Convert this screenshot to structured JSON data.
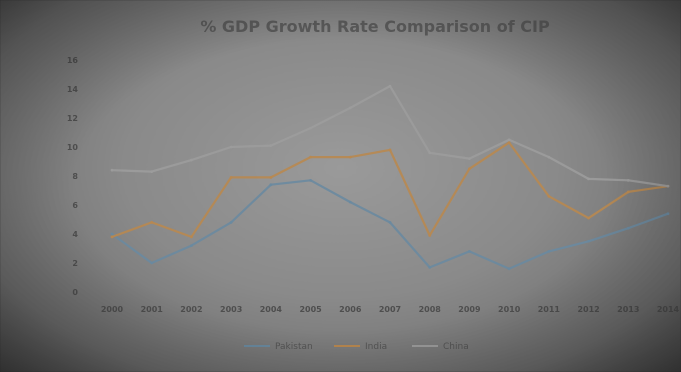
{
  "chart_data": {
    "type": "line",
    "title": "% GDP Growth Rate Comparison of CIP",
    "xlabel": "",
    "ylabel": "",
    "categories": [
      "2000",
      "2001",
      "2002",
      "2003",
      "2004",
      "2005",
      "2006",
      "2007",
      "2008",
      "2009",
      "2010",
      "2011",
      "2012",
      "2013",
      "2014"
    ],
    "yticks": [
      "0",
      "2",
      "4",
      "6",
      "8",
      "10",
      "12",
      "14",
      "16"
    ],
    "ylim": [
      0,
      16
    ],
    "grid": false,
    "legend_position": "bottom",
    "series": [
      {
        "name": "Pakistan",
        "color": "#6a8aa0",
        "values": [
          4.0,
          2.0,
          3.2,
          4.8,
          7.4,
          7.7,
          6.2,
          4.8,
          1.7,
          2.8,
          1.6,
          2.8,
          3.5,
          4.4,
          5.4
        ]
      },
      {
        "name": "India",
        "color": "#b88850",
        "values": [
          3.8,
          4.8,
          3.8,
          7.9,
          7.9,
          9.3,
          9.3,
          9.8,
          3.9,
          8.5,
          10.3,
          6.6,
          5.1,
          6.9,
          7.3
        ]
      },
      {
        "name": "China",
        "color": "#9c9c9c",
        "values": [
          8.4,
          8.3,
          9.1,
          10.0,
          10.1,
          11.3,
          12.7,
          14.2,
          9.6,
          9.2,
          10.5,
          9.3,
          7.8,
          7.7,
          7.3
        ]
      }
    ]
  }
}
